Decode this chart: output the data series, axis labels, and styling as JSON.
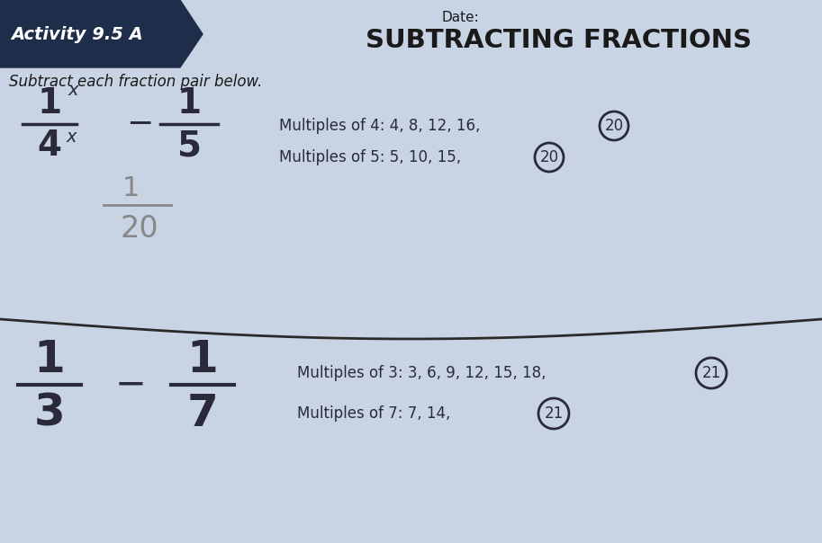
{
  "bg_color": "#c8d4e3",
  "title": "SUBTRACTING FRACTIONS",
  "subtitle": "Subtract each fraction pair below.",
  "header_label": "Activity 9.5 A",
  "date_label": "Date:",
  "problem1": {
    "frac1_num": "1",
    "frac1_den": "4",
    "frac2_num": "1",
    "frac2_den": "5",
    "answer_num": "1",
    "answer_den": "20",
    "multiples_label1": "Multiples of 4: 4, 8, 12, 16,",
    "multiples_label2": "Multiples of 5: 5, 10, 15,",
    "circled1": "20",
    "circled2": "20"
  },
  "problem2": {
    "frac1_num": "1",
    "frac1_den": "3",
    "frac2_num": "1",
    "frac2_den": "7",
    "multiples_label1": "Multiples of 3: 3, 6, 9, 12, 15, 18,",
    "multiples_label2": "Multiples of 7: 7, 14,",
    "circled1": "21",
    "circled2": "21"
  },
  "header_bg": "#1e2d4a",
  "header_text_color": "#ffffff",
  "divider_color": "#2a2a2a",
  "font_color": "#1a1a1a",
  "handwriting_color": "#2a2a3a"
}
